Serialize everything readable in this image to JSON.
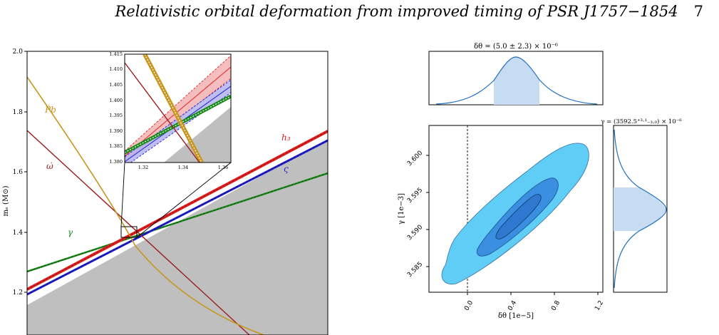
{
  "header": {
    "title": "Relativistic orbital deformation from improved timing of PSR J1757−1854",
    "page_number": "7"
  },
  "left_figure": {
    "ylabel": "mₑ (M⊙)",
    "yticks": [
      "2.0",
      "1.8",
      "1.6",
      "1.4",
      "1.2"
    ],
    "curve_labels": {
      "pbdot": "Ṗb",
      "omegadot": "ω̇",
      "gamma": "γ",
      "h3": "h₃",
      "varsigma": "ς"
    },
    "inset": {
      "yticks": [
        "1.415",
        "1.410",
        "1.405",
        "1.400",
        "1.395",
        "1.390",
        "1.385",
        "1.380"
      ],
      "xticks": [
        "1.32",
        "1.34",
        "1.36"
      ]
    },
    "colors": {
      "pbdot": "#c8961e",
      "omegadot": "#9b1f1f",
      "gamma": "#1a8a1a",
      "h3": "#e02020",
      "varsigma": "#1f1fd0",
      "excluded": "#bfbfbf"
    }
  },
  "right_figure": {
    "top_title": "δθ = (5.0 ± 2.3) × 10⁻⁶",
    "right_title": "γ = (3592.5⁺³·¹₋₃.₀) × 10⁻⁶",
    "xlabel": "δθ [1e−5]",
    "ylabel": "γ [1e−3]",
    "xticks": [
      "0.0",
      "0.4",
      "0.8",
      "1.2"
    ],
    "yticks": [
      "3.600",
      "3.595",
      "3.590",
      "3.585"
    ],
    "colors": {
      "outer": "#5fcdf5",
      "middle": "#3a8fe0",
      "inner": "#2f78cf",
      "hist_fill": "#c7dcf3",
      "hist_line": "#1f6fbf"
    }
  }
}
